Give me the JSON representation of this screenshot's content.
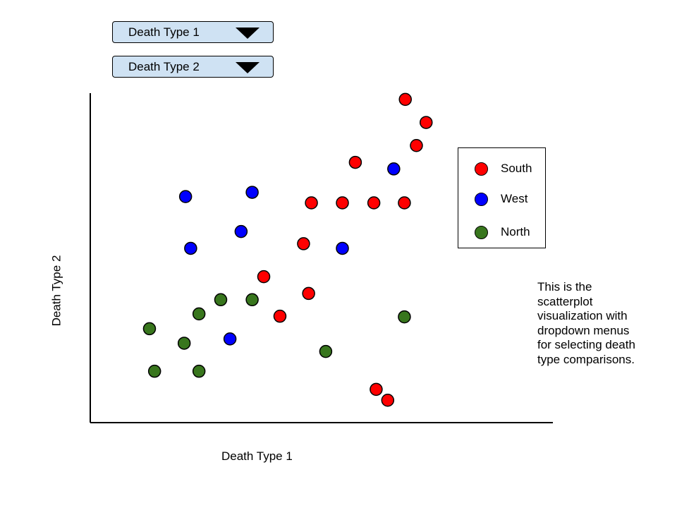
{
  "dropdowns": [
    {
      "label": "Death Type 1"
    },
    {
      "label": "Death Type 2"
    }
  ],
  "colors": {
    "South": "#ff0000",
    "West": "#0000ff",
    "North": "#38761d",
    "dropdown_bg": "#cfe2f3",
    "axis": "#000000"
  },
  "legend": {
    "items": [
      {
        "name": "South",
        "color": "#ff0000"
      },
      {
        "name": "West",
        "color": "#0000ff"
      },
      {
        "name": "North",
        "color": "#38761d"
      }
    ]
  },
  "caption": "This is the\nscatterplot\nvisualization with\ndropdown menus\nfor selecting death\ntype comparisons.",
  "chart_data": {
    "type": "scatter",
    "title": "",
    "xlabel": "Death Type 1",
    "ylabel": "Death Type 2",
    "grid": false,
    "legend_position": "right",
    "series": [
      {
        "name": "South",
        "color": "#ff0000",
        "points": [
          {
            "x": 68.1,
            "y": 98.1
          },
          {
            "x": 72.6,
            "y": 91.1
          },
          {
            "x": 70.5,
            "y": 84.1
          },
          {
            "x": 57.3,
            "y": 79.0
          },
          {
            "x": 47.8,
            "y": 66.7
          },
          {
            "x": 54.5,
            "y": 66.7
          },
          {
            "x": 61.3,
            "y": 66.7
          },
          {
            "x": 67.9,
            "y": 66.7
          },
          {
            "x": 46.1,
            "y": 54.3
          },
          {
            "x": 37.5,
            "y": 44.3
          },
          {
            "x": 47.2,
            "y": 39.2
          },
          {
            "x": 41.0,
            "y": 32.3
          },
          {
            "x": 61.8,
            "y": 10.1
          },
          {
            "x": 64.3,
            "y": 6.8
          }
        ]
      },
      {
        "name": "West",
        "color": "#0000ff",
        "points": [
          {
            "x": 65.6,
            "y": 77.0
          },
          {
            "x": 20.6,
            "y": 68.6
          },
          {
            "x": 35.0,
            "y": 69.9
          },
          {
            "x": 32.6,
            "y": 58.0
          },
          {
            "x": 21.7,
            "y": 52.9
          },
          {
            "x": 54.5,
            "y": 52.9
          },
          {
            "x": 30.2,
            "y": 25.4
          }
        ]
      },
      {
        "name": "North",
        "color": "#38761d",
        "points": [
          {
            "x": 28.2,
            "y": 37.3
          },
          {
            "x": 35.0,
            "y": 37.3
          },
          {
            "x": 23.5,
            "y": 33.0
          },
          {
            "x": 67.9,
            "y": 32.1
          },
          {
            "x": 12.8,
            "y": 28.5
          },
          {
            "x": 20.3,
            "y": 24.1
          },
          {
            "x": 50.9,
            "y": 21.6
          },
          {
            "x": 13.9,
            "y": 15.6
          },
          {
            "x": 23.5,
            "y": 15.6
          }
        ]
      }
    ]
  }
}
